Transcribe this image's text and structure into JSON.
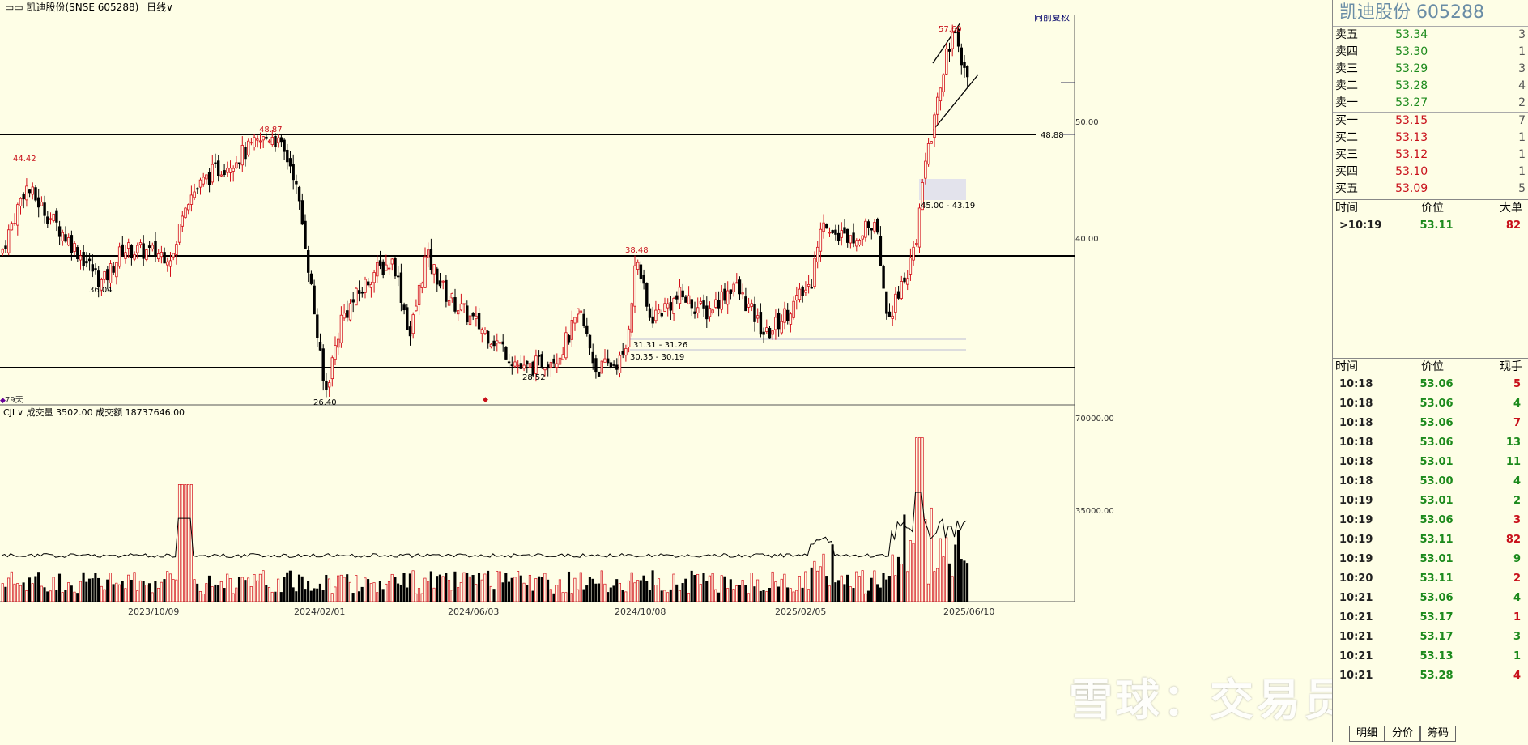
{
  "header": {
    "title": "▭▭ 凯迪股份(SNSE 605288)",
    "period": "日线∨",
    "restore": "向前复权"
  },
  "price_labels": {
    "p1": "44.42",
    "p2": "36.04",
    "p3": "48.87",
    "p4": "26.40",
    "p5": "38.48",
    "p6": "28.52",
    "p7": "57.60",
    "p8": "48.88",
    "zone1": "31.31 - 31.26",
    "zone2": "30.35 - 30.19",
    "zone3": "45.00 - 43.19",
    "days": "79天"
  },
  "axis": {
    "y1": "50.00",
    "y2": "40.00",
    "v1": "70000.00",
    "v2": "35000.00",
    "dates": [
      "2023/10/09",
      "2024/02/01",
      "2024/06/03",
      "2024/10/08",
      "2025/02/05",
      "2025/06/10"
    ]
  },
  "volume_label": "CJL∨  成交量 3502.00  成交额 18737646.00",
  "side": {
    "title": "凯迪股份  605288",
    "asks": [
      {
        "label": "卖五",
        "price": "53.34",
        "qty": "3"
      },
      {
        "label": "卖四",
        "price": "53.30",
        "qty": "1"
      },
      {
        "label": "卖三",
        "price": "53.29",
        "qty": "3"
      },
      {
        "label": "卖二",
        "price": "53.28",
        "qty": "4"
      },
      {
        "label": "卖一",
        "price": "53.27",
        "qty": "2"
      }
    ],
    "bids": [
      {
        "label": "买一",
        "price": "53.15",
        "qty": "7"
      },
      {
        "label": "买二",
        "price": "53.13",
        "qty": "1"
      },
      {
        "label": "买三",
        "price": "53.12",
        "qty": "1"
      },
      {
        "label": "买四",
        "price": "53.10",
        "qty": "1"
      },
      {
        "label": "买五",
        "price": "53.09",
        "qty": "5"
      }
    ],
    "big_header": [
      "时间",
      "价位",
      "大单"
    ],
    "big_row": {
      "time": ">10:19",
      "price": "53.11",
      "qty": "82"
    },
    "tick_header": [
      "时间",
      "价位",
      "现手"
    ],
    "ticks": [
      {
        "time": "10:18",
        "price": "53.06",
        "qty": "5",
        "c": "red"
      },
      {
        "time": "10:18",
        "price": "53.06",
        "qty": "4",
        "c": "green"
      },
      {
        "time": "10:18",
        "price": "53.06",
        "qty": "7",
        "c": "red"
      },
      {
        "time": "10:18",
        "price": "53.06",
        "qty": "13",
        "c": "green"
      },
      {
        "time": "10:18",
        "price": "53.01",
        "qty": "11",
        "c": "green"
      },
      {
        "time": "10:18",
        "price": "53.00",
        "qty": "4",
        "c": "green"
      },
      {
        "time": "10:19",
        "price": "53.01",
        "qty": "2",
        "c": "green"
      },
      {
        "time": "10:19",
        "price": "53.06",
        "qty": "3",
        "c": "red"
      },
      {
        "time": "10:19",
        "price": "53.11",
        "qty": "82",
        "c": "red"
      },
      {
        "time": "10:19",
        "price": "53.01",
        "qty": "9",
        "c": "green"
      },
      {
        "time": "10:20",
        "price": "53.11",
        "qty": "2",
        "c": "red"
      },
      {
        "time": "10:21",
        "price": "53.06",
        "qty": "4",
        "c": "green"
      },
      {
        "time": "10:21",
        "price": "53.17",
        "qty": "1",
        "c": "red"
      },
      {
        "time": "10:21",
        "price": "53.17",
        "qty": "3",
        "c": "green"
      },
      {
        "time": "10:21",
        "price": "53.13",
        "qty": "1",
        "c": "green"
      },
      {
        "time": "10:21",
        "price": "53.28",
        "qty": "4",
        "c": "red"
      }
    ],
    "tabs": [
      "明细",
      "分价",
      "筹码"
    ]
  },
  "watermark": "雪球：交易员王起",
  "chart_data": {
    "type": "candlestick",
    "title": "凯迪股份(SNSE 605288) 日线",
    "x_dates": [
      "2023/10/09",
      "2024/02/01",
      "2024/06/03",
      "2024/10/08",
      "2025/02/05",
      "2025/06/10"
    ],
    "support_resistance": [
      48.88,
      38.5,
      28.8
    ],
    "key_prices": [
      44.42,
      36.04,
      48.87,
      26.4,
      38.48,
      28.52,
      57.6
    ],
    "path": [
      [
        0,
        38.6
      ],
      [
        30,
        44.4
      ],
      [
        110,
        37.5
      ],
      [
        125,
        36.0
      ],
      [
        150,
        39.0
      ],
      [
        215,
        38.5
      ],
      [
        225,
        43.0
      ],
      [
        260,
        45.5
      ],
      [
        335,
        48.9
      ],
      [
        360,
        46.0
      ],
      [
        375,
        40.0
      ],
      [
        400,
        26.4
      ],
      [
        420,
        33.0
      ],
      [
        460,
        37.0
      ],
      [
        485,
        38.0
      ],
      [
        505,
        31.5
      ],
      [
        525,
        38.5
      ],
      [
        550,
        35.0
      ],
      [
        580,
        33.0
      ],
      [
        620,
        30.5
      ],
      [
        645,
        28.5
      ],
      [
        690,
        30.0
      ],
      [
        715,
        33.5
      ],
      [
        735,
        28.6
      ],
      [
        770,
        29.5
      ],
      [
        785,
        38.5
      ],
      [
        800,
        33.0
      ],
      [
        840,
        35.0
      ],
      [
        870,
        33.5
      ],
      [
        905,
        36.0
      ],
      [
        945,
        31.5
      ],
      [
        1000,
        36.0
      ],
      [
        1015,
        41.5
      ],
      [
        1040,
        40.0
      ],
      [
        1080,
        41.0
      ],
      [
        1095,
        33.0
      ],
      [
        1130,
        39.0
      ],
      [
        1140,
        47.0
      ],
      [
        1150,
        49.0
      ],
      [
        1165,
        55.0
      ],
      [
        1175,
        57.6
      ],
      [
        1195,
        53.5
      ]
    ],
    "ylim": [
      25,
      59
    ],
    "volume_ylim": [
      0,
      70000
    ]
  }
}
